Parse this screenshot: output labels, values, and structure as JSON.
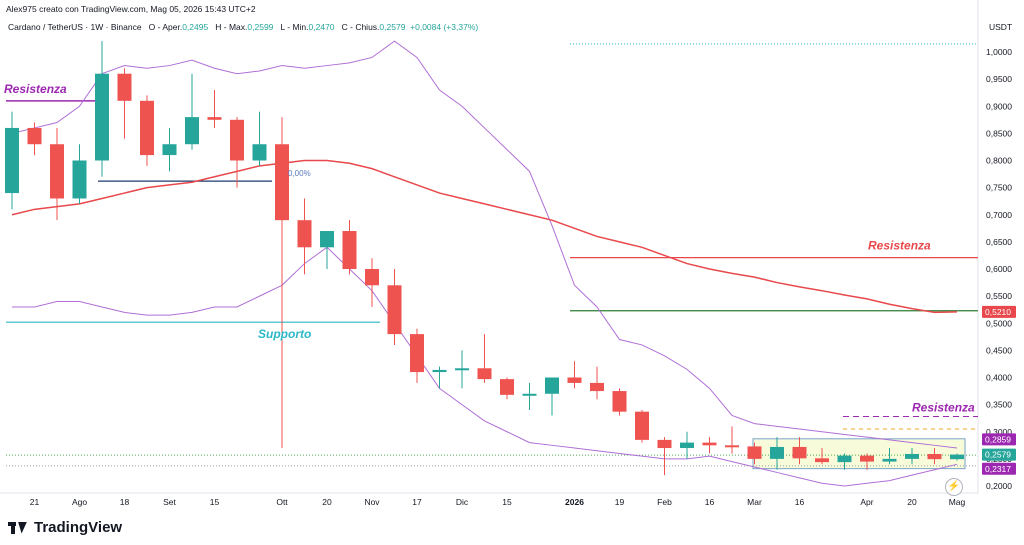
{
  "header": {
    "attribution": "Alex975 creato con TradingView.com, Mag 05, 2026 15:43 UTC+2"
  },
  "symbol_bar": {
    "title": "Cardano / TetherUS · 1W · Binance",
    "open_label": "O - Aper.",
    "open": "0,2495",
    "high_label": "H - Max.",
    "high": "0,2599",
    "low_label": "L - Min.",
    "low": "0,2470",
    "close_label": "C - Chius.",
    "close": "0,2579",
    "change": "+0,0084 (+3,37%)"
  },
  "brand": {
    "name": "TradingView"
  },
  "colors": {
    "up": "#26a69a",
    "down": "#ef5350",
    "bollinger": "#b06fd6",
    "ma": "#e8484b",
    "support": "#2bb8c7",
    "resistance_red": "#e8484b",
    "resistance_green": "#2e7d32",
    "resistance_purple": "#9c27b0",
    "dark_line": "#1e3a6e",
    "range_box_fill": "#f7fbd9",
    "range_box_border": "#7aa3c8"
  },
  "chart_data": {
    "type": "candlestick",
    "currency": "USDT",
    "ylim": [
      0.18,
      1.06
    ],
    "y_ticks": [
      "1,0000",
      "0,9500",
      "0,9000",
      "0,8500",
      "0,8000",
      "0,7500",
      "0,7000",
      "0,6500",
      "0,6000",
      "0,5500",
      "0,5000",
      "0,4500",
      "0,4000",
      "0,3500",
      "0,3000",
      "0,2500",
      "0,2000"
    ],
    "y_tick_values": [
      1.0,
      0.95,
      0.9,
      0.85,
      0.8,
      0.75,
      0.7,
      0.65,
      0.6,
      0.55,
      0.5,
      0.45,
      0.4,
      0.35,
      0.3,
      0.25,
      0.2
    ],
    "x_ticks": [
      {
        "label": "21",
        "i": 1
      },
      {
        "label": "Ago",
        "i": 3
      },
      {
        "label": "18",
        "i": 5
      },
      {
        "label": "Set",
        "i": 7
      },
      {
        "label": "15",
        "i": 9
      },
      {
        "label": "Ott",
        "i": 12
      },
      {
        "label": "20",
        "i": 14
      },
      {
        "label": "Nov",
        "i": 16
      },
      {
        "label": "17",
        "i": 18
      },
      {
        "label": "Dic",
        "i": 20
      },
      {
        "label": "15",
        "i": 22
      },
      {
        "label": "2026",
        "i": 25
      },
      {
        "label": "19",
        "i": 27
      },
      {
        "label": "Feb",
        "i": 29
      },
      {
        "label": "16",
        "i": 31
      },
      {
        "label": "Mar",
        "i": 33
      },
      {
        "label": "16",
        "i": 35
      },
      {
        "label": "Apr",
        "i": 38
      },
      {
        "label": "20",
        "i": 40
      },
      {
        "label": "Mag",
        "i": 42
      }
    ],
    "candles": [
      {
        "o": 0.74,
        "h": 0.89,
        "l": 0.71,
        "c": 0.86
      },
      {
        "o": 0.86,
        "h": 0.87,
        "l": 0.81,
        "c": 0.83
      },
      {
        "o": 0.83,
        "h": 0.86,
        "l": 0.69,
        "c": 0.73
      },
      {
        "o": 0.73,
        "h": 0.83,
        "l": 0.72,
        "c": 0.8
      },
      {
        "o": 0.8,
        "h": 1.02,
        "l": 0.77,
        "c": 0.96
      },
      {
        "o": 0.96,
        "h": 0.97,
        "l": 0.84,
        "c": 0.91
      },
      {
        "o": 0.91,
        "h": 0.92,
        "l": 0.79,
        "c": 0.81
      },
      {
        "o": 0.81,
        "h": 0.86,
        "l": 0.78,
        "c": 0.83
      },
      {
        "o": 0.83,
        "h": 0.96,
        "l": 0.82,
        "c": 0.88
      },
      {
        "o": 0.88,
        "h": 0.93,
        "l": 0.86,
        "c": 0.875
      },
      {
        "o": 0.875,
        "h": 0.88,
        "l": 0.75,
        "c": 0.8
      },
      {
        "o": 0.8,
        "h": 0.89,
        "l": 0.79,
        "c": 0.83
      },
      {
        "o": 0.83,
        "h": 0.88,
        "l": 0.27,
        "c": 0.69
      },
      {
        "o": 0.69,
        "h": 0.73,
        "l": 0.59,
        "c": 0.64
      },
      {
        "o": 0.64,
        "h": 0.67,
        "l": 0.6,
        "c": 0.67
      },
      {
        "o": 0.67,
        "h": 0.69,
        "l": 0.59,
        "c": 0.6
      },
      {
        "o": 0.6,
        "h": 0.62,
        "l": 0.53,
        "c": 0.57
      },
      {
        "o": 0.57,
        "h": 0.6,
        "l": 0.46,
        "c": 0.48
      },
      {
        "o": 0.48,
        "h": 0.49,
        "l": 0.39,
        "c": 0.41
      },
      {
        "o": 0.41,
        "h": 0.42,
        "l": 0.38,
        "c": 0.414
      },
      {
        "o": 0.414,
        "h": 0.45,
        "l": 0.38,
        "c": 0.417
      },
      {
        "o": 0.417,
        "h": 0.48,
        "l": 0.39,
        "c": 0.397
      },
      {
        "o": 0.397,
        "h": 0.4,
        "l": 0.36,
        "c": 0.368
      },
      {
        "o": 0.368,
        "h": 0.39,
        "l": 0.34,
        "c": 0.37
      },
      {
        "o": 0.37,
        "h": 0.4,
        "l": 0.33,
        "c": 0.4
      },
      {
        "o": 0.4,
        "h": 0.43,
        "l": 0.38,
        "c": 0.39
      },
      {
        "o": 0.39,
        "h": 0.42,
        "l": 0.36,
        "c": 0.375
      },
      {
        "o": 0.375,
        "h": 0.38,
        "l": 0.33,
        "c": 0.337
      },
      {
        "o": 0.337,
        "h": 0.34,
        "l": 0.28,
        "c": 0.285
      },
      {
        "o": 0.285,
        "h": 0.29,
        "l": 0.22,
        "c": 0.27
      },
      {
        "o": 0.27,
        "h": 0.3,
        "l": 0.25,
        "c": 0.28
      },
      {
        "o": 0.28,
        "h": 0.29,
        "l": 0.26,
        "c": 0.275
      },
      {
        "o": 0.275,
        "h": 0.31,
        "l": 0.26,
        "c": 0.273
      },
      {
        "o": 0.273,
        "h": 0.28,
        "l": 0.24,
        "c": 0.25
      },
      {
        "o": 0.25,
        "h": 0.29,
        "l": 0.23,
        "c": 0.272
      },
      {
        "o": 0.272,
        "h": 0.29,
        "l": 0.24,
        "c": 0.251
      },
      {
        "o": 0.251,
        "h": 0.27,
        "l": 0.24,
        "c": 0.244
      },
      {
        "o": 0.244,
        "h": 0.26,
        "l": 0.23,
        "c": 0.256
      },
      {
        "o": 0.256,
        "h": 0.26,
        "l": 0.23,
        "c": 0.245
      },
      {
        "o": 0.245,
        "h": 0.27,
        "l": 0.24,
        "c": 0.25
      },
      {
        "o": 0.25,
        "h": 0.27,
        "l": 0.24,
        "c": 0.259
      },
      {
        "o": 0.259,
        "h": 0.27,
        "l": 0.24,
        "c": 0.2495
      },
      {
        "o": 0.2495,
        "h": 0.2599,
        "l": 0.247,
        "c": 0.2579
      }
    ],
    "moving_average": [
      0.7,
      0.71,
      0.715,
      0.72,
      0.73,
      0.74,
      0.75,
      0.755,
      0.76,
      0.77,
      0.78,
      0.79,
      0.795,
      0.8,
      0.8,
      0.795,
      0.785,
      0.77,
      0.755,
      0.74,
      0.73,
      0.72,
      0.71,
      0.7,
      0.69,
      0.675,
      0.66,
      0.65,
      0.64,
      0.625,
      0.61,
      0.6,
      0.592,
      0.585,
      0.575,
      0.567,
      0.56,
      0.552,
      0.545,
      0.535,
      0.527,
      0.52,
      0.521
    ],
    "bollinger_upper": [
      0.85,
      0.86,
      0.87,
      0.9,
      0.96,
      0.975,
      0.97,
      0.975,
      0.985,
      0.97,
      0.96,
      0.965,
      0.975,
      0.97,
      0.975,
      0.98,
      0.99,
      1.02,
      0.99,
      0.93,
      0.9,
      0.86,
      0.82,
      0.78,
      0.68,
      0.57,
      0.53,
      0.47,
      0.46,
      0.44,
      0.415,
      0.38,
      0.33,
      0.315,
      0.31,
      0.305,
      0.3,
      0.295,
      0.29,
      0.285,
      0.28,
      0.275,
      0.27
    ],
    "bollinger_lower": [
      0.53,
      0.53,
      0.54,
      0.54,
      0.53,
      0.52,
      0.515,
      0.515,
      0.52,
      0.53,
      0.53,
      0.55,
      0.57,
      0.61,
      0.64,
      0.6,
      0.56,
      0.5,
      0.44,
      0.38,
      0.35,
      0.32,
      0.3,
      0.28,
      0.275,
      0.27,
      0.265,
      0.26,
      0.255,
      0.25,
      0.25,
      0.255,
      0.245,
      0.235,
      0.225,
      0.215,
      0.205,
      0.2,
      0.205,
      0.21,
      0.22,
      0.23,
      0.24
    ],
    "last_price": "0,2579",
    "price_labels": [
      {
        "text": "0,5210",
        "value": 0.521,
        "color": "#e8484b"
      },
      {
        "text": "0,2859",
        "value": 0.2859,
        "color": "#9c27b0"
      },
      {
        "text": "0,2579",
        "value": 0.2579,
        "color": "#26a69a"
      },
      {
        "text": "0,2317",
        "value": 0.2317,
        "color": "#9c27b0"
      }
    ],
    "annotations": [
      {
        "text": "Resistenza",
        "kind": "resistance_purple_left"
      },
      {
        "text": "Supporto",
        "kind": "support"
      },
      {
        "text": "Resistenza",
        "kind": "resistance_red"
      },
      {
        "text": "Resistenza",
        "kind": "resistance_purple_right"
      },
      {
        "text": "0,00%",
        "kind": "fib"
      }
    ],
    "levels": {
      "support": 0.502,
      "resistance_red": 0.621,
      "resistance_green": 0.523,
      "resistance_left_purple": 0.91,
      "fib_dark": 0.762,
      "top_dotted": 1.015,
      "purple_dashed": 0.328,
      "orange_dashed": 0.305,
      "green_dotted": 0.257,
      "gray_dotted": 0.237,
      "range_box_top": 0.287,
      "range_box_bottom": 0.232
    },
    "grid": false
  }
}
